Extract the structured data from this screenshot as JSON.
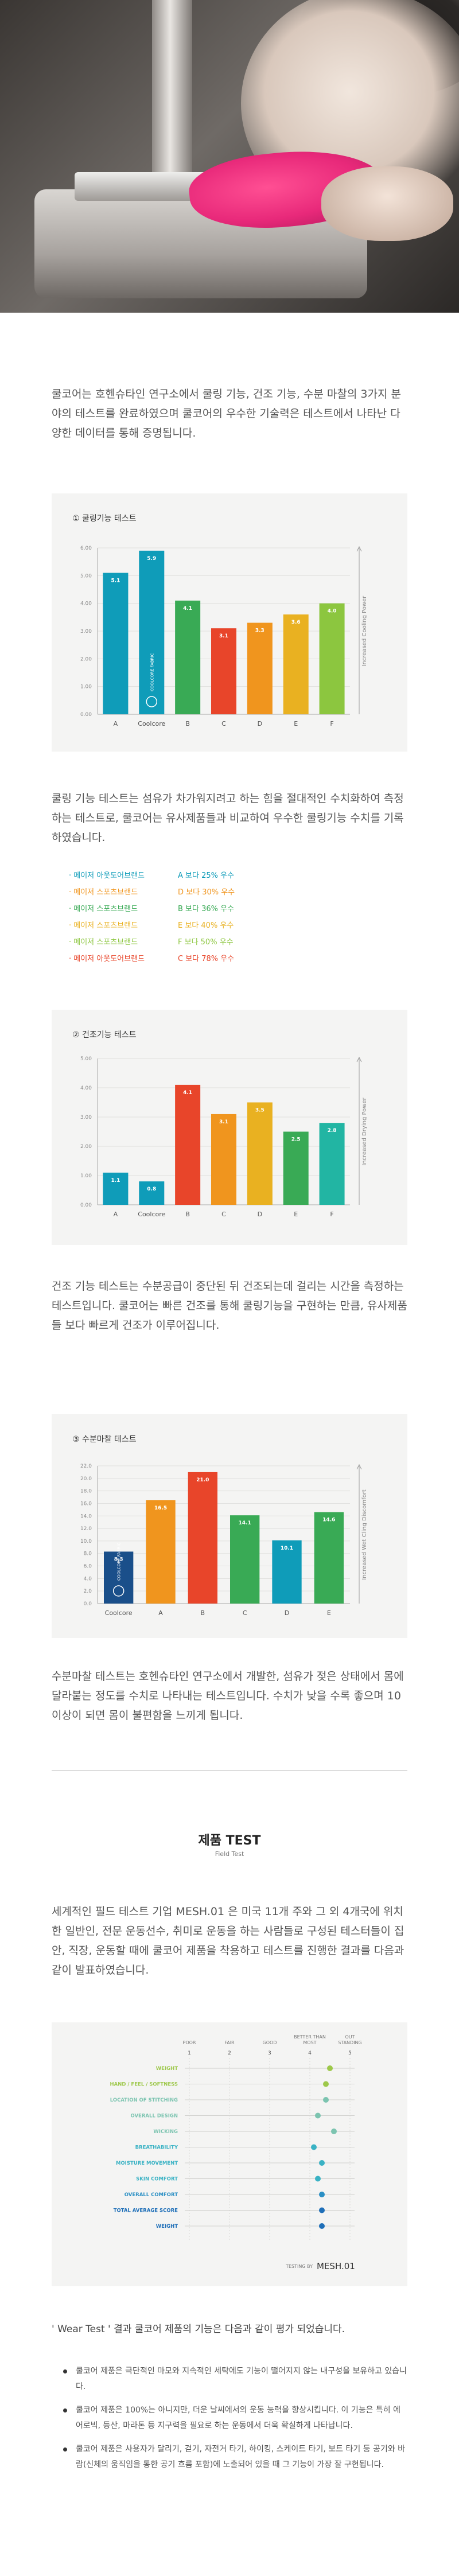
{
  "intro_text": "쿨코어는 호헨슈타인 연구소에서 쿨링 기능, 건조 기능, 수분 마찰의 3가지 분야의 테스트를 완료하였으며 쿨코어의 우수한 기술력은 테스트에서 나타난 다양한 데이터를 통해 증명됩니다.",
  "cooling_text": "쿨링 기능 테스트는 섬유가 차가워지려고 하는 힘을 절대적인 수치화하여 측정하는 테스트로, 쿨코어는 유사제품들과 비교하여 우수한 쿨링기능 수치를 기록하였습니다.",
  "drying_text": "건조 기능 테스트는 수분공급이 중단된 뒤 건조되는데 걸리는 시간을 측정하는 테스트입니다. 쿨코어는 빠른 건조를 통해 쿨링기능을 구현하는 만큼, 유사제품들 보다 빠르게 건조가 이루어집니다.",
  "friction_text": "수분마찰 테스트는 호헨슈타인 연구소에서 개발한, 섬유가 젖은 상태에서 몸에 달라붙는 정도를 수치로 나타내는 테스트입니다. 수치가 낮을 수록 좋으며 10이상이 되면 몸이 불편함을 느끼게 됩니다.",
  "coolcore_bar_label": "COOLCORE FABRIC",
  "coolcore_logo": "COOLCORE",
  "comparisons": [
    {
      "brand": "메이저 아웃도어브랜드",
      "result": "A 보다 25% 우수",
      "color": "#0f9cb9"
    },
    {
      "brand": "메이저 스포츠브랜드",
      "result": "D 보다 30% 우수",
      "color": "#f0951e"
    },
    {
      "brand": "메이저 스포츠브랜드",
      "result": "B 보다 36% 우수",
      "color": "#39aa55"
    },
    {
      "brand": "메이저 스포츠브랜드",
      "result": "E 보다 40% 우수",
      "color": "#e9b121"
    },
    {
      "brand": "메이저 스포츠브랜드",
      "result": "F 보다 50% 우수",
      "color": "#8cc63f"
    },
    {
      "brand": "메이저 아웃도어브랜드",
      "result": "C 보다 78% 우수",
      "color": "#e8452a"
    }
  ],
  "field": {
    "title": "제품 TEST",
    "subtitle": "Field Test",
    "text": "세계적인 필드 테스트 기업 MESH.01 은 미국 11개 주와 그 외 4개국에 위치한 일반인, 전문 운동선수, 취미로 운동을 하는 사람들로 구성된 테스터들이 집안, 직장, 운동할 때에 쿨코어 제품을 착용하고 테스트를 진행한 결과를 다음과 같이 발표하였습니다.",
    "scale": [
      {
        "num": "1",
        "label": "POOR"
      },
      {
        "num": "2",
        "label": "FAIR"
      },
      {
        "num": "3",
        "label": "GOOD"
      },
      {
        "num": "4",
        "label": "BETTER THAN MOST"
      },
      {
        "num": "5",
        "label": "OUT STANDING"
      }
    ],
    "testing_by": "TESTING BY",
    "tester_logo": "MESH.01"
  },
  "wear": {
    "heading": "' Wear Test ' 결과 쿨코어 제품의 기능은 다음과 같이 평가 되었습니다.",
    "items": [
      "쿨코어 제품은 극단적인 마모와 지속적인 세탁에도 기능이 떨어지지 않는 내구성을 보유하고 있습니다.",
      "쿨코어 제품은 100%는 아니지만, 더운 날씨에서의 운동 능력을 향상시킵니다. 이 기능은 특히 에어로빅, 등산, 마라톤 등 지구력을 필요로 하는 운동에서 더욱 확실하게 나타납니다.",
      "쿨코어 제품은 사용자가 달리기, 걷기, 자전거 타기, 하이킹, 스케이트 타기, 보트 타기 등 공기와 바람(신체의 움직임을 통한 공기 흐름 포함)에 노출되어 있을 때 그 기능이 가장 잘 구현됩니다."
    ]
  },
  "chart_data": [
    {
      "type": "bar",
      "title": "① 쿨링기능 테스트",
      "categories": [
        "A",
        "Coolcore",
        "B",
        "C",
        "D",
        "E",
        "F"
      ],
      "values": [
        5.1,
        5.9,
        4.1,
        3.1,
        3.3,
        3.6,
        4.0
      ],
      "colors": [
        "#0f9cb9",
        "#0f9cb9",
        "#39aa55",
        "#e8452a",
        "#f0951e",
        "#e9b121",
        "#8cc63f"
      ],
      "ylabel": "Increased Cooling Power",
      "yticks": [
        "0.00",
        "1.00",
        "2.00",
        "3.00",
        "4.00",
        "5.00",
        "6.00"
      ],
      "ylim": [
        0,
        6
      ]
    },
    {
      "type": "bar",
      "title": "② 건조기능 테스트",
      "categories": [
        "A",
        "Coolcore",
        "B",
        "C",
        "D",
        "E",
        "F"
      ],
      "values": [
        1.1,
        0.8,
        4.1,
        3.1,
        3.5,
        2.5,
        2.8
      ],
      "colors": [
        "#0f9cb9",
        "#0f9cb9",
        "#e8452a",
        "#f0951e",
        "#e9b121",
        "#39aa55",
        "#22b5a3"
      ],
      "ylabel": "Increased Drying Power",
      "yticks": [
        "0.00",
        "1.00",
        "2.00",
        "3.00",
        "4.00",
        "5.00"
      ],
      "ylim": [
        0,
        5
      ]
    },
    {
      "type": "bar",
      "title": "③ 수분마찰 테스트",
      "categories": [
        "Coolcore",
        "A",
        "B",
        "C",
        "D",
        "E"
      ],
      "values": [
        8.3,
        16.5,
        21.0,
        14.1,
        10.1,
        14.6
      ],
      "colors": [
        "#1a4f8a",
        "#f0951e",
        "#e8452a",
        "#39aa55",
        "#0f9cb9",
        "#39aa55"
      ],
      "ylabel": "Increased Wet Cling Discomfort",
      "yticks": [
        "0.0",
        "2.0",
        "4.0",
        "6.0",
        "8.0",
        "10.0",
        "12.0",
        "14.0",
        "16.0",
        "18.0",
        "20.0",
        "22.0"
      ],
      "ylim": [
        0,
        22
      ]
    },
    {
      "type": "scatter",
      "title": "",
      "categories": [
        "WEIGHT",
        "HAND / FEEL / SOFTNESS",
        "LOCATION OF STITCHING",
        "OVERALL DESIGN",
        "WICKING",
        "BREATHABILITY",
        "MOISTURE MOVEMENT",
        "SKIN COMFORT",
        "OVERALL COMFORT",
        "TOTAL AVERAGE SCORE",
        "WEIGHT"
      ],
      "values": [
        4.5,
        4.4,
        4.4,
        4.2,
        4.6,
        4.1,
        4.3,
        4.2,
        4.3,
        4.3,
        4.3
      ],
      "label_colors": [
        "#9dc84a",
        "#9dc84a",
        "#7cc4b0",
        "#7cc4b0",
        "#7cc4b0",
        "#3ab2c4",
        "#3ab2c4",
        "#3ab2c4",
        "#2a8fc4",
        "#1f6fb8",
        "#1f6fb8"
      ],
      "xlim": [
        1,
        5
      ]
    }
  ]
}
